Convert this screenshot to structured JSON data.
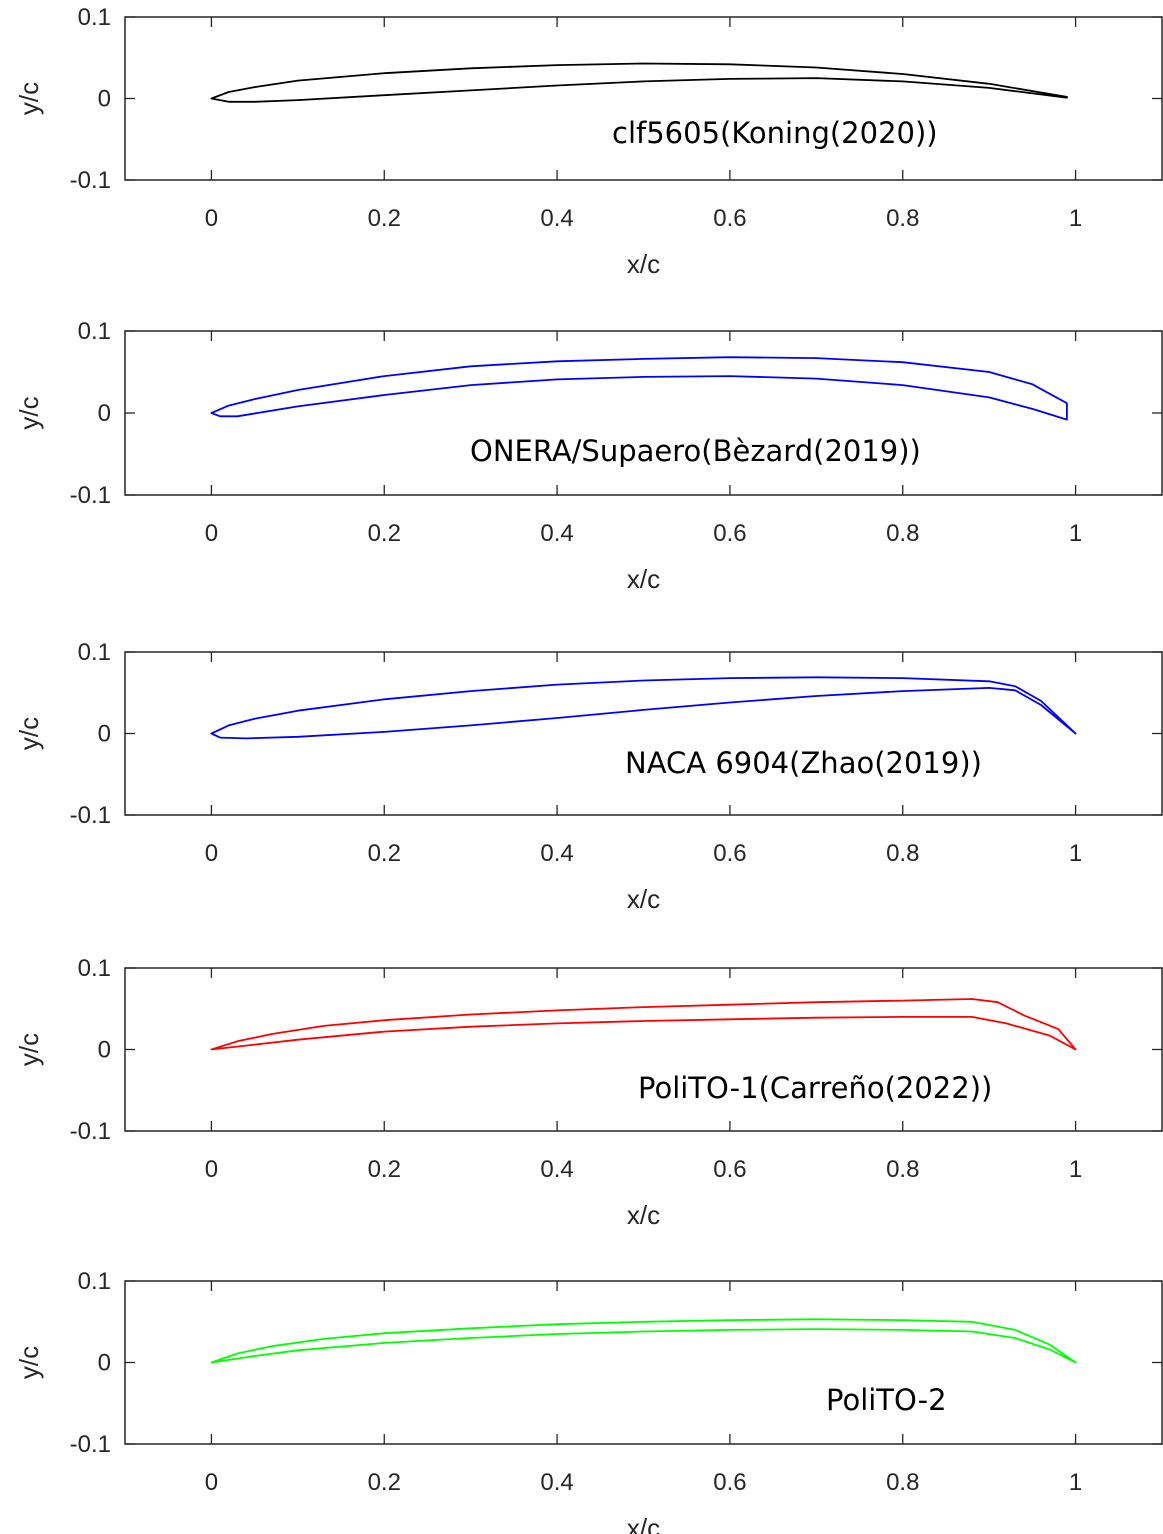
{
  "chart_data": [
    {
      "type": "line",
      "xlabel": "x/c",
      "ylabel": "y/c",
      "xlim": [
        -0.1,
        1.1
      ],
      "ylim": [
        -0.1,
        0.1
      ],
      "xticks": [
        "0",
        "0.2",
        "0.4",
        "0.6",
        "0.8",
        "1"
      ],
      "yticks": [
        "-0.1",
        "0",
        "0.1"
      ],
      "annotation": "clf5605(Koning(2020))",
      "color": "#000000",
      "series": [
        {
          "values_upper": [
            [
              0,
              0
            ],
            [
              0.02,
              0.008
            ],
            [
              0.05,
              0.014
            ],
            [
              0.1,
              0.022
            ],
            [
              0.2,
              0.031
            ],
            [
              0.3,
              0.037
            ],
            [
              0.4,
              0.041
            ],
            [
              0.5,
              0.043
            ],
            [
              0.6,
              0.042
            ],
            [
              0.7,
              0.038
            ],
            [
              0.8,
              0.03
            ],
            [
              0.9,
              0.018
            ],
            [
              0.99,
              0.002
            ]
          ],
          "values_lower": [
            [
              0,
              0
            ],
            [
              0.02,
              -0.004
            ],
            [
              0.05,
              -0.004
            ],
            [
              0.1,
              -0.002
            ],
            [
              0.2,
              0.004
            ],
            [
              0.3,
              0.01
            ],
            [
              0.4,
              0.016
            ],
            [
              0.5,
              0.021
            ],
            [
              0.6,
              0.024
            ],
            [
              0.7,
              0.025
            ],
            [
              0.8,
              0.021
            ],
            [
              0.9,
              0.013
            ],
            [
              0.99,
              0.001
            ]
          ]
        }
      ]
    },
    {
      "type": "line",
      "xlabel": "x/c",
      "ylabel": "y/c",
      "xlim": [
        -0.1,
        1.1
      ],
      "ylim": [
        -0.1,
        0.1
      ],
      "xticks": [
        "0",
        "0.2",
        "0.4",
        "0.6",
        "0.8",
        "1"
      ],
      "yticks": [
        "-0.1",
        "0",
        "0.1"
      ],
      "annotation": "ONERA/Supaero(Bèzard(2019))",
      "color": "#0000ff",
      "series": [
        {
          "values_upper": [
            [
              0,
              0
            ],
            [
              0.02,
              0.009
            ],
            [
              0.05,
              0.017
            ],
            [
              0.1,
              0.028
            ],
            [
              0.2,
              0.045
            ],
            [
              0.3,
              0.057
            ],
            [
              0.4,
              0.063
            ],
            [
              0.5,
              0.066
            ],
            [
              0.6,
              0.068
            ],
            [
              0.7,
              0.067
            ],
            [
              0.8,
              0.062
            ],
            [
              0.9,
              0.05
            ],
            [
              0.95,
              0.035
            ],
            [
              0.99,
              0.012
            ]
          ],
          "values_lower": [
            [
              0,
              0
            ],
            [
              0.01,
              -0.004
            ],
            [
              0.03,
              -0.004
            ],
            [
              0.1,
              0.008
            ],
            [
              0.2,
              0.022
            ],
            [
              0.3,
              0.034
            ],
            [
              0.4,
              0.041
            ],
            [
              0.5,
              0.044
            ],
            [
              0.6,
              0.045
            ],
            [
              0.7,
              0.042
            ],
            [
              0.8,
              0.034
            ],
            [
              0.9,
              0.019
            ],
            [
              0.95,
              0.005
            ],
            [
              0.99,
              -0.008
            ]
          ]
        }
      ]
    },
    {
      "type": "line",
      "xlabel": "x/c",
      "ylabel": "y/c",
      "xlim": [
        -0.1,
        1.1
      ],
      "ylim": [
        -0.1,
        0.1
      ],
      "xticks": [
        "0",
        "0.2",
        "0.4",
        "0.6",
        "0.8",
        "1"
      ],
      "yticks": [
        "-0.1",
        "0",
        "0.1"
      ],
      "annotation": "NACA 6904(Zhao(2019))",
      "color": "#0000ff",
      "series": [
        {
          "values_upper": [
            [
              0,
              0
            ],
            [
              0.02,
              0.01
            ],
            [
              0.05,
              0.018
            ],
            [
              0.1,
              0.028
            ],
            [
              0.2,
              0.042
            ],
            [
              0.3,
              0.052
            ],
            [
              0.4,
              0.06
            ],
            [
              0.5,
              0.065
            ],
            [
              0.6,
              0.068
            ],
            [
              0.7,
              0.069
            ],
            [
              0.8,
              0.068
            ],
            [
              0.9,
              0.064
            ],
            [
              0.93,
              0.058
            ],
            [
              0.96,
              0.04
            ],
            [
              1.0,
              0
            ]
          ],
          "values_lower": [
            [
              0,
              0
            ],
            [
              0.01,
              -0.005
            ],
            [
              0.04,
              -0.006
            ],
            [
              0.1,
              -0.004
            ],
            [
              0.2,
              0.002
            ],
            [
              0.3,
              0.01
            ],
            [
              0.4,
              0.019
            ],
            [
              0.5,
              0.029
            ],
            [
              0.6,
              0.038
            ],
            [
              0.7,
              0.046
            ],
            [
              0.8,
              0.052
            ],
            [
              0.9,
              0.056
            ],
            [
              0.93,
              0.053
            ],
            [
              0.96,
              0.035
            ],
            [
              1.0,
              0
            ]
          ]
        }
      ]
    },
    {
      "type": "line",
      "xlabel": "x/c",
      "ylabel": "y/c",
      "xlim": [
        -0.1,
        1.1
      ],
      "ylim": [
        -0.1,
        0.1
      ],
      "xticks": [
        "0",
        "0.2",
        "0.4",
        "0.6",
        "0.8",
        "1"
      ],
      "yticks": [
        "-0.1",
        "0",
        "0.1"
      ],
      "annotation": "PoliTO-1(Carreño(2022))",
      "color": "#ff0000",
      "series": [
        {
          "values_upper": [
            [
              0,
              0
            ],
            [
              0.03,
              0.01
            ],
            [
              0.07,
              0.019
            ],
            [
              0.13,
              0.029
            ],
            [
              0.2,
              0.036
            ],
            [
              0.3,
              0.043
            ],
            [
              0.4,
              0.048
            ],
            [
              0.5,
              0.052
            ],
            [
              0.6,
              0.055
            ],
            [
              0.7,
              0.058
            ],
            [
              0.8,
              0.06
            ],
            [
              0.88,
              0.062
            ],
            [
              0.91,
              0.058
            ],
            [
              0.94,
              0.042
            ],
            [
              0.98,
              0.025
            ],
            [
              1.0,
              0
            ]
          ],
          "values_lower": [
            [
              0,
              0
            ],
            [
              0.05,
              0.006
            ],
            [
              0.1,
              0.012
            ],
            [
              0.2,
              0.022
            ],
            [
              0.3,
              0.028
            ],
            [
              0.4,
              0.032
            ],
            [
              0.5,
              0.035
            ],
            [
              0.6,
              0.037
            ],
            [
              0.7,
              0.039
            ],
            [
              0.8,
              0.04
            ],
            [
              0.88,
              0.04
            ],
            [
              0.92,
              0.032
            ],
            [
              0.97,
              0.017
            ],
            [
              1.0,
              0
            ]
          ]
        }
      ]
    },
    {
      "type": "line",
      "xlabel": "x/c",
      "ylabel": "y/c",
      "xlim": [
        -0.1,
        1.1
      ],
      "ylim": [
        -0.1,
        0.1
      ],
      "xticks": [
        "0",
        "0.2",
        "0.4",
        "0.6",
        "0.8",
        "1"
      ],
      "yticks": [
        "-0.1",
        "0",
        "0.1"
      ],
      "annotation": "PoliTO-2",
      "color": "#00ff00",
      "series": [
        {
          "values_upper": [
            [
              0,
              0
            ],
            [
              0.03,
              0.011
            ],
            [
              0.07,
              0.02
            ],
            [
              0.13,
              0.029
            ],
            [
              0.2,
              0.036
            ],
            [
              0.3,
              0.042
            ],
            [
              0.4,
              0.047
            ],
            [
              0.5,
              0.05
            ],
            [
              0.6,
              0.052
            ],
            [
              0.7,
              0.053
            ],
            [
              0.8,
              0.052
            ],
            [
              0.88,
              0.05
            ],
            [
              0.93,
              0.04
            ],
            [
              0.97,
              0.022
            ],
            [
              1.0,
              0
            ]
          ],
          "values_lower": [
            [
              0,
              0
            ],
            [
              0.05,
              0.008
            ],
            [
              0.1,
              0.015
            ],
            [
              0.2,
              0.024
            ],
            [
              0.3,
              0.03
            ],
            [
              0.4,
              0.035
            ],
            [
              0.5,
              0.038
            ],
            [
              0.6,
              0.04
            ],
            [
              0.7,
              0.041
            ],
            [
              0.8,
              0.04
            ],
            [
              0.88,
              0.038
            ],
            [
              0.93,
              0.03
            ],
            [
              0.97,
              0.016
            ],
            [
              1.0,
              0
            ]
          ]
        }
      ]
    }
  ]
}
